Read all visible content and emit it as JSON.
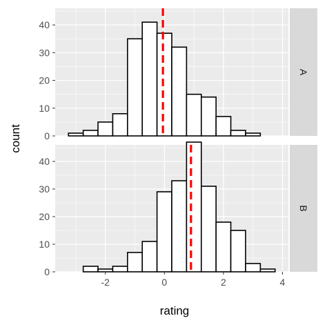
{
  "chart_data": {
    "type": "bar",
    "subtype": "faceted-histogram",
    "xlabel": "rating",
    "ylabel": "count",
    "xlim": [
      -3.7,
      4.2
    ],
    "ylim": [
      0,
      46
    ],
    "x_ticks": [
      -2,
      0,
      2,
      4
    ],
    "y_ticks": [
      0,
      10,
      20,
      30,
      40
    ],
    "bin_width": 0.5,
    "colors": {
      "panel_background": "#ebebeb",
      "grid": "#ffffff",
      "strip_background": "#d9d9d9",
      "bar_fill": "#ffffff",
      "bar_outline": "#000000",
      "mean_line": "#ff0000"
    },
    "facets": [
      {
        "label": "A",
        "bins": [
          {
            "x0": -3.25,
            "count": 1
          },
          {
            "x0": -2.75,
            "count": 2
          },
          {
            "x0": -2.25,
            "count": 5
          },
          {
            "x0": -1.75,
            "count": 8
          },
          {
            "x0": -1.25,
            "count": 35
          },
          {
            "x0": -0.75,
            "count": 41
          },
          {
            "x0": -0.25,
            "count": 37
          },
          {
            "x0": 0.25,
            "count": 32
          },
          {
            "x0": 0.75,
            "count": 15
          },
          {
            "x0": 1.25,
            "count": 14
          },
          {
            "x0": 1.75,
            "count": 7
          },
          {
            "x0": 2.25,
            "count": 2
          },
          {
            "x0": 2.75,
            "count": 1
          },
          {
            "x0": 3.25,
            "count": 0
          }
        ],
        "mean": -0.05
      },
      {
        "label": "B",
        "bins": [
          {
            "x0": -3.25,
            "count": 0
          },
          {
            "x0": -2.75,
            "count": 2
          },
          {
            "x0": -2.25,
            "count": 1
          },
          {
            "x0": -1.75,
            "count": 2
          },
          {
            "x0": -1.25,
            "count": 7
          },
          {
            "x0": -0.75,
            "count": 11
          },
          {
            "x0": -0.25,
            "count": 29
          },
          {
            "x0": 0.25,
            "count": 33
          },
          {
            "x0": 0.75,
            "count": 47
          },
          {
            "x0": 1.25,
            "count": 31
          },
          {
            "x0": 1.75,
            "count": 18
          },
          {
            "x0": 2.25,
            "count": 15
          },
          {
            "x0": 2.75,
            "count": 3
          },
          {
            "x0": 3.25,
            "count": 1
          }
        ],
        "mean": 0.9
      }
    ]
  }
}
